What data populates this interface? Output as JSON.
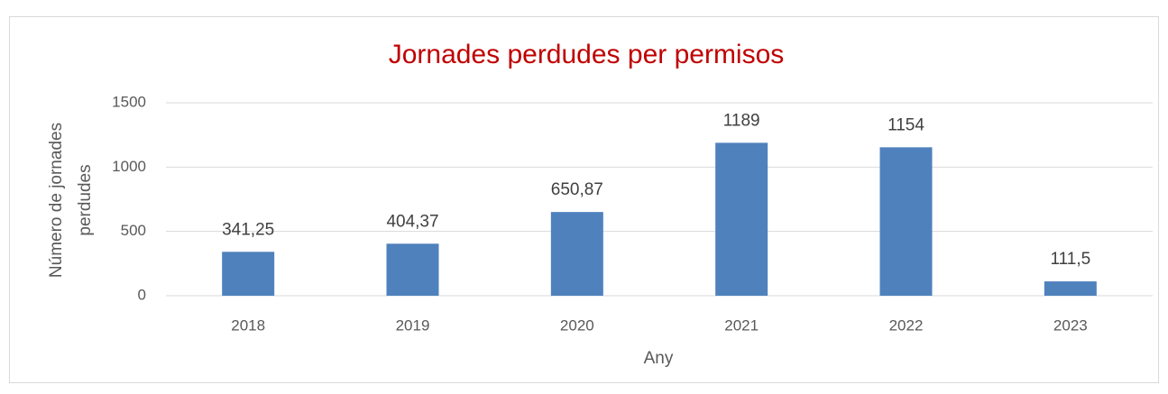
{
  "chart_data": {
    "type": "bar",
    "title": "Jornades perdudes per permisos",
    "xlabel": "Any",
    "ylabel": [
      "Número de jornades",
      "perdudes"
    ],
    "categories": [
      "2018",
      "2019",
      "2020",
      "2021",
      "2022",
      "2023"
    ],
    "values": [
      341.25,
      404.37,
      650.87,
      1189,
      1154,
      111.5
    ],
    "value_labels": [
      "341,25",
      "404,37",
      "650,87",
      "1189",
      "1154",
      "111,5"
    ],
    "color": "#4f81bd",
    "ylim": [
      0,
      1500
    ],
    "yticks": [
      0,
      500,
      1000,
      1500
    ],
    "grid": true
  }
}
